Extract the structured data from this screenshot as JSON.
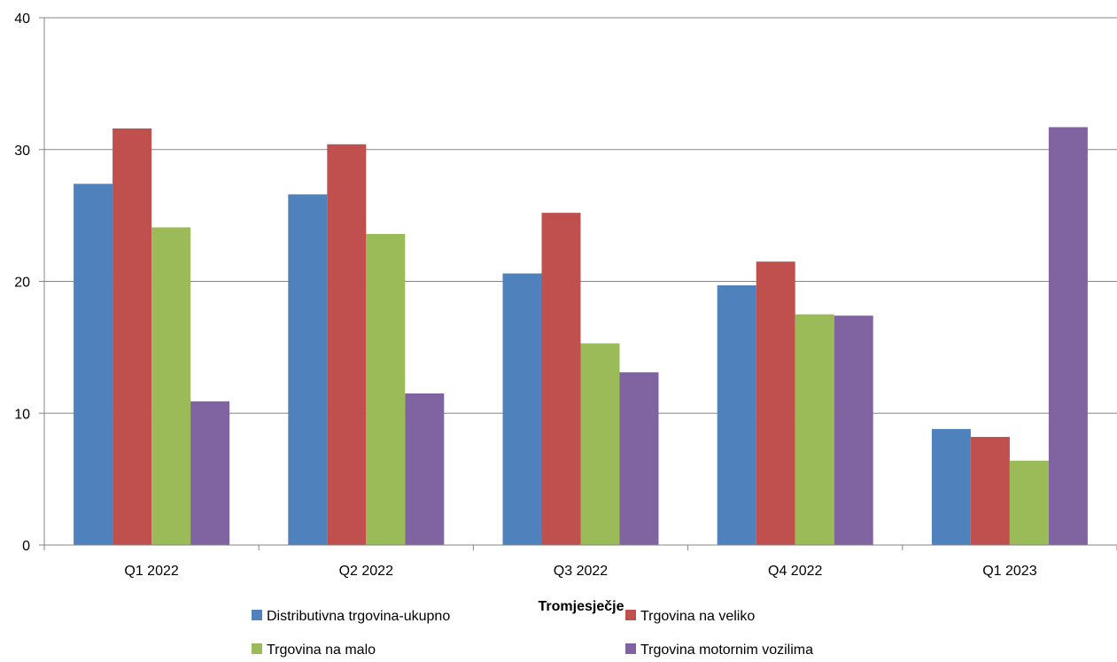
{
  "chart_data": {
    "type": "bar",
    "title": "",
    "xlabel": "Tromjesječje",
    "ylabel": "",
    "ylim": [
      0,
      40
    ],
    "yticks": [
      0,
      10,
      20,
      30,
      40
    ],
    "grid": true,
    "legend_position": "bottom",
    "categories": [
      "Q1 2022",
      "Q2 2022",
      "Q3 2022",
      "Q4 2022",
      "Q1 2023"
    ],
    "series": [
      {
        "name": "Distributivna trgovina-ukupno",
        "color": "#4F81BD",
        "values": [
          27.4,
          26.6,
          20.6,
          19.7,
          8.8
        ]
      },
      {
        "name": "Trgovina na veliko",
        "color": "#C0504D",
        "values": [
          31.6,
          30.4,
          25.2,
          21.5,
          8.2
        ]
      },
      {
        "name": "Trgovina na malo",
        "color": "#9BBB59",
        "values": [
          24.1,
          23.6,
          15.3,
          17.5,
          6.4
        ]
      },
      {
        "name": "Trgovina motornim vozilima",
        "color": "#8064A2",
        "values": [
          10.9,
          11.5,
          13.1,
          17.4,
          31.7
        ]
      }
    ]
  }
}
